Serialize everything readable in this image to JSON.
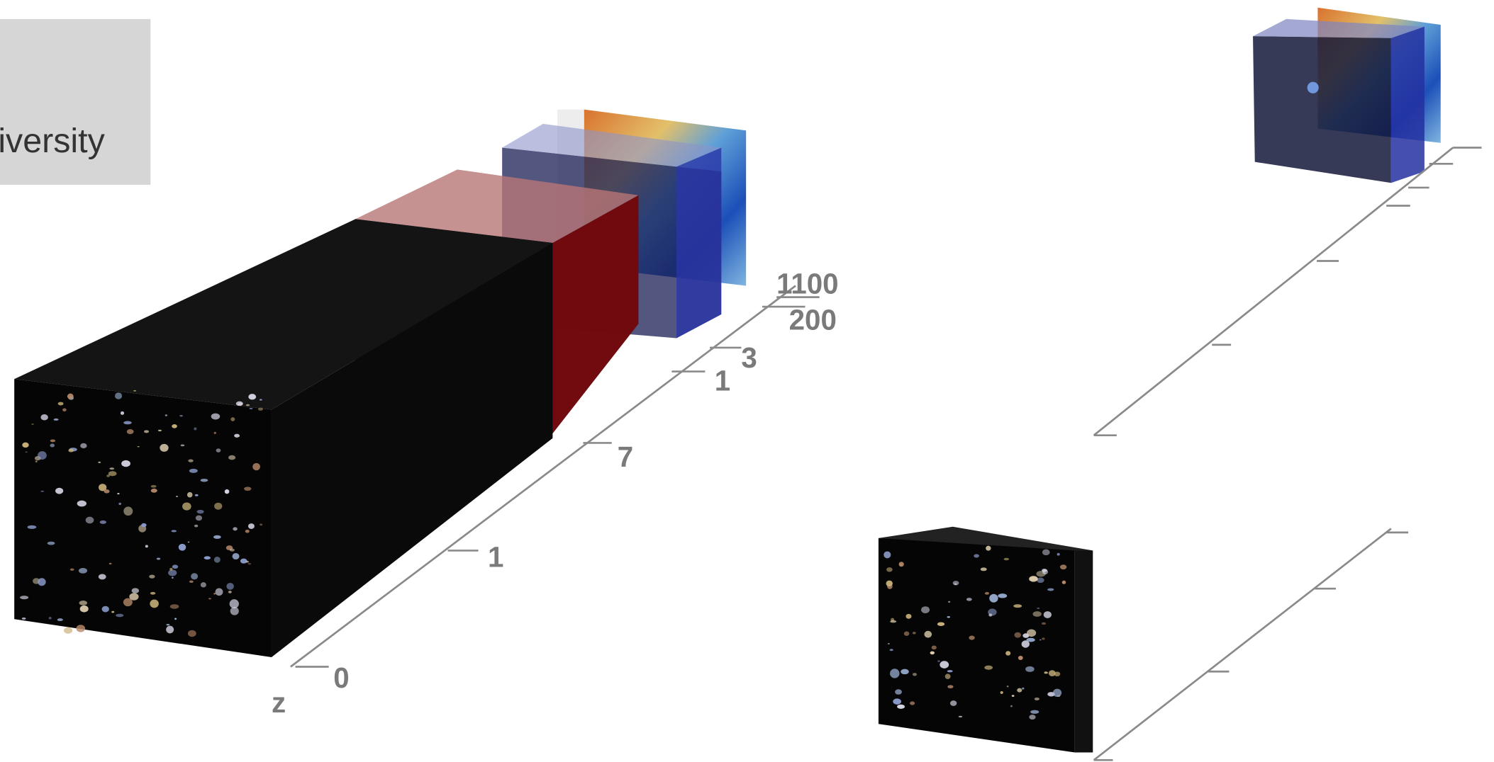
{
  "header": {
    "title": "iversity"
  },
  "axis": {
    "name": "z",
    "ticks": [
      "0",
      "1",
      "7",
      "1",
      "3",
      "200",
      "1100"
    ]
  }
}
